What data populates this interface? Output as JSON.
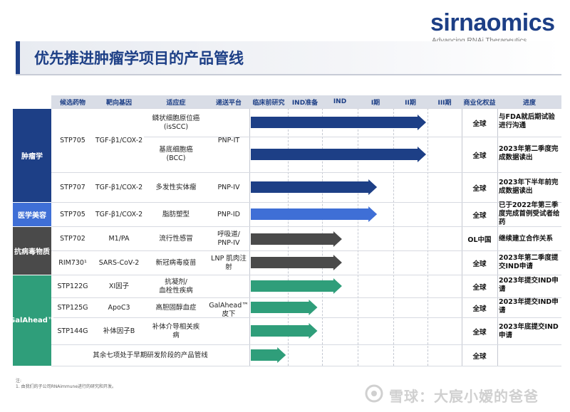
{
  "logo": {
    "word": "sirnaomics",
    "tagline": "Advancing RNAi Therapeutics"
  },
  "title": "优先推进肿瘤学项目的产品管线",
  "headers": {
    "drug": "候选药物",
    "target": "靶向基因",
    "indication": "适应症",
    "platform": "递送平台",
    "preclinical": "临床前研究",
    "ind_prep": "IND准备",
    "ind": "IND",
    "phase1": "I期",
    "phase2": "II期",
    "phase3": "III期",
    "rights": "商业化权益",
    "progress": "进度"
  },
  "categories": [
    {
      "name": "肿瘤学",
      "color": "#1d3f86"
    },
    {
      "name": "医学美容",
      "color": "#3f6fd6"
    },
    {
      "name": "抗病毒物质",
      "color": "#4a4a4a"
    },
    {
      "name": "GalAhead™",
      "color": "#2f9e7a"
    }
  ],
  "rows": [
    {
      "drug": "STP705",
      "target": "TGF-β1/COX-2",
      "indication": "鳞状细胞原位癌\n(isSCC)",
      "platform": "PNP-IT",
      "stage_fraction": 1.0,
      "color": "#1d3f86",
      "rights": "全球",
      "progress": "与FDA就后期试验进行沟通"
    },
    {
      "drug": "",
      "target": "",
      "indication": "基底细胞癌\n(BCC)",
      "platform": "",
      "stage_fraction": 1.0,
      "color": "#1d3f86",
      "rights": "全球",
      "progress": "2023年第二季度完成数据读出"
    },
    {
      "drug": "STP707",
      "target": "TGF-β1/COX-2",
      "indication": "多发性实体瘤",
      "platform": "PNP-IV",
      "stage_fraction": 0.72,
      "color": "#1d3f86",
      "rights": "全球",
      "progress": "2023年下半年前完成数据读出"
    },
    {
      "drug": "STP705",
      "target": "TGF-β1/COX-2",
      "indication": "脂肪塑型",
      "platform": "PNP-ID",
      "stage_fraction": 0.72,
      "color": "#3f6fd6",
      "rights": "全球",
      "progress": "已于2022年第三季度完成首例受试者给药"
    },
    {
      "drug": "STP702",
      "target": "M1/PA",
      "indication": "流行性感冒",
      "platform": "呼吸道/\nPNP-IV",
      "stage_fraction": 0.52,
      "color": "#4a4a4a",
      "rights": "OL中国",
      "progress": "继续建立合作关系"
    },
    {
      "drug": "RIM730¹",
      "target": "SARS-CoV-2",
      "indication": "新冠病毒疫苗",
      "platform": "LNP 肌肉注射",
      "stage_fraction": 0.52,
      "color": "#4a4a4a",
      "rights": "全球",
      "progress": "2023年第二季度提交IND申请"
    },
    {
      "drug": "STP122G",
      "target": "XI因子",
      "indication": "抗凝剂/\n血栓性疾病",
      "platform": "",
      "stage_fraction": 0.52,
      "color": "#2f9e7a",
      "rights": "全球",
      "progress": "2023年提交IND申请"
    },
    {
      "drug": "STP125G",
      "target": "ApoC3",
      "indication": "高胆固醇血症",
      "platform": "GalAhead™\n皮下",
      "stage_fraction": 0.38,
      "color": "#2f9e7a",
      "rights": "全球",
      "progress": "2023年提交IND申请"
    },
    {
      "drug": "STP144G",
      "target": "补体因子B",
      "indication": "补体介导相关疾\n病",
      "platform": "",
      "stage_fraction": 0.38,
      "color": "#2f9e7a",
      "rights": "全球",
      "progress": "2023年底提交IND申请"
    },
    {
      "drug": "其余七项处于早期研发阶段的产品管线",
      "target": "",
      "indication": "",
      "platform": "",
      "stage_fraction": 0.2,
      "color": "#2f9e7a",
      "rights": "全球",
      "progress": ""
    }
  ],
  "footnote": {
    "label": "注:",
    "text": "1. 由我们的子公司RNAimmune进行的研究和开发。"
  },
  "watermark": "雪球：大宸小嫒的爸爸"
}
